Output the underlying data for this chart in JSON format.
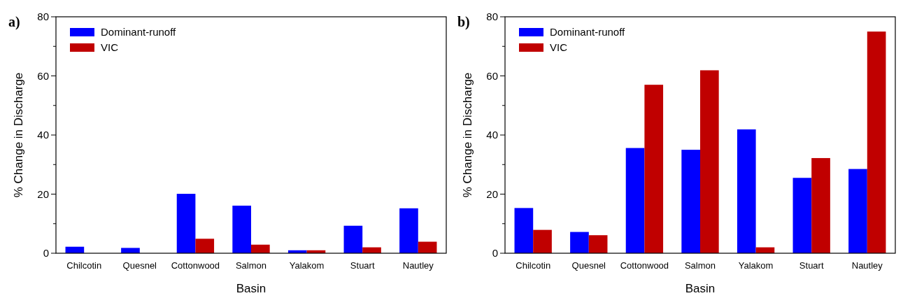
{
  "chart_data": [
    {
      "type": "bar",
      "title": "a)",
      "xlabel": "Basin",
      "ylabel": "%  Change in Discharge",
      "categories": [
        "Chilcotin",
        "Quesnel",
        "Cottonwood",
        "Salmon",
        "Yalakom",
        "Stuart",
        "Nautley"
      ],
      "series": [
        {
          "name": "Dominant-runoff",
          "color": "#0000ff",
          "values": [
            2.2,
            1.8,
            20.1,
            16.1,
            1.0,
            9.3,
            15.2
          ]
        },
        {
          "name": "VIC",
          "color": "#c00000",
          "values": [
            0,
            0,
            4.9,
            2.9,
            1.0,
            2.0,
            3.9
          ]
        }
      ],
      "ylim": [
        0,
        80
      ],
      "yticks": [
        0,
        {
          "value": 10,
          "label": null
        },
        20,
        {
          "value": 30,
          "label": null
        },
        40,
        {
          "value": 50,
          "label": null
        },
        60,
        {
          "value": 70,
          "label": null
        },
        80
      ],
      "legend": "top left",
      "grid": false
    },
    {
      "type": "bar",
      "title": "b)",
      "xlabel": "Basin",
      "ylabel": "%  Change in Discharge",
      "categories": [
        "Chilcotin",
        "Quesnel",
        "Cottonwood",
        "Salmon",
        "Yalakom",
        "Stuart",
        "Nautley"
      ],
      "series": [
        {
          "name": "Dominant-runoff",
          "color": "#0000ff",
          "values": [
            15.3,
            7.2,
            35.6,
            35.0,
            41.9,
            25.5,
            28.5
          ]
        },
        {
          "name": "VIC",
          "color": "#c00000",
          "values": [
            7.9,
            6.1,
            57.0,
            61.9,
            2.0,
            32.2,
            75.0
          ]
        }
      ],
      "ylim": [
        0,
        80
      ],
      "yticks": [
        0,
        {
          "value": 10,
          "label": null
        },
        20,
        {
          "value": 30,
          "label": null
        },
        40,
        {
          "value": 50,
          "label": null
        },
        60,
        {
          "value": 70,
          "label": null
        },
        80
      ],
      "legend": "top left",
      "grid": false
    }
  ]
}
